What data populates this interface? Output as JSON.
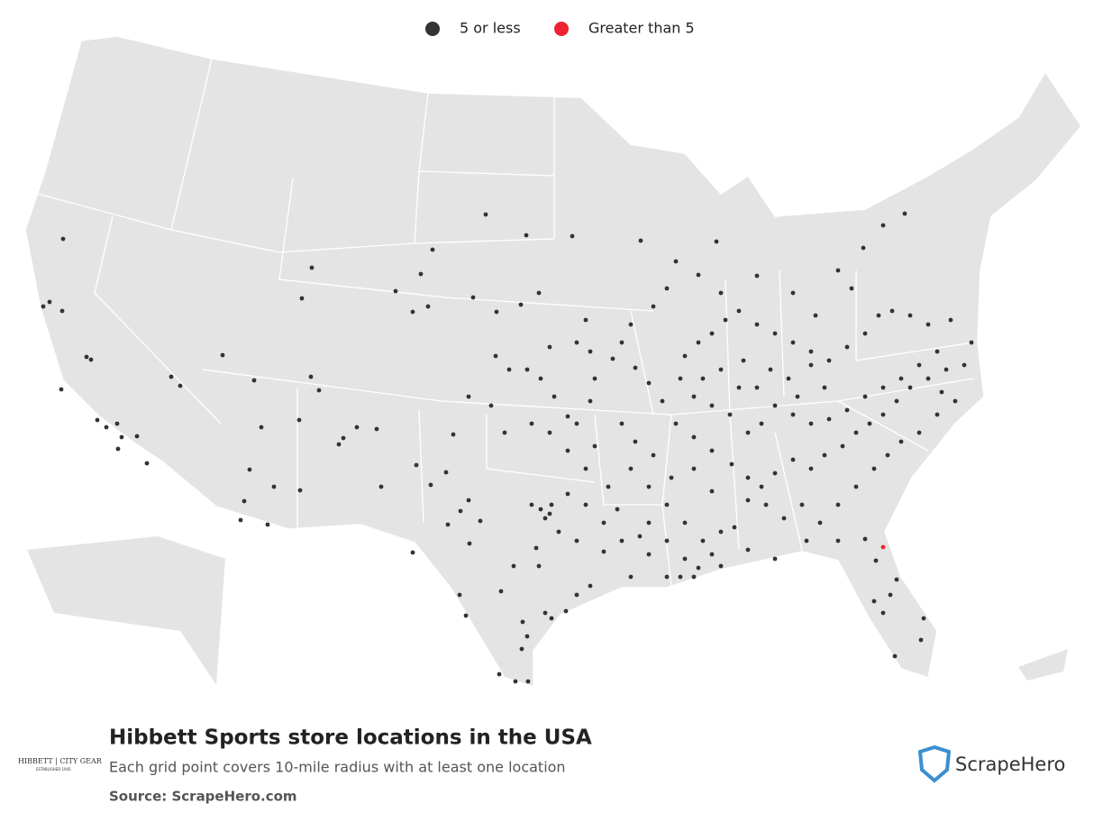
{
  "legend": [
    {
      "label": "5 or less",
      "color": "#333333"
    },
    {
      "label": "Greater than 5",
      "color": "#ee2233"
    }
  ],
  "title": "Hibbett Sports store locations in the USA",
  "subtitle": "Each grid point covers 10-mile radius with at least one location",
  "source": "Source: ScrapeHero.com",
  "brand": {
    "name": "HIBBETT | CITY GEAR",
    "tagline": "ESTABLISHED 1945"
  },
  "publisher": "ScrapeHero"
}
